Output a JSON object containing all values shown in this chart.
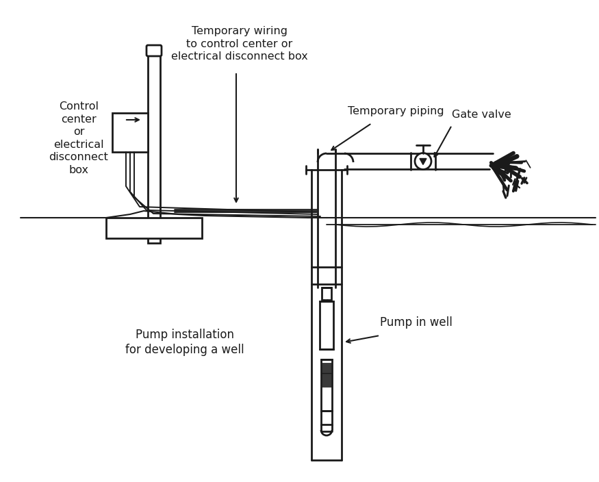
{
  "bg_color": "white",
  "line_color": "#1a1a1a",
  "labels": {
    "control_center": "Control\ncenter\nor\nelectrical\ndisconnect\nbox",
    "temp_wiring": "Temporary wiring\nto control center or\nelectrical disconnect box",
    "temp_piping": "Temporary piping",
    "gate_valve": "Gate valve",
    "pump_install": "Pump installation\nfor developing a well",
    "pump_in_well": "Pump in well"
  },
  "figsize": [
    8.75,
    7.04
  ],
  "dpi": 100
}
